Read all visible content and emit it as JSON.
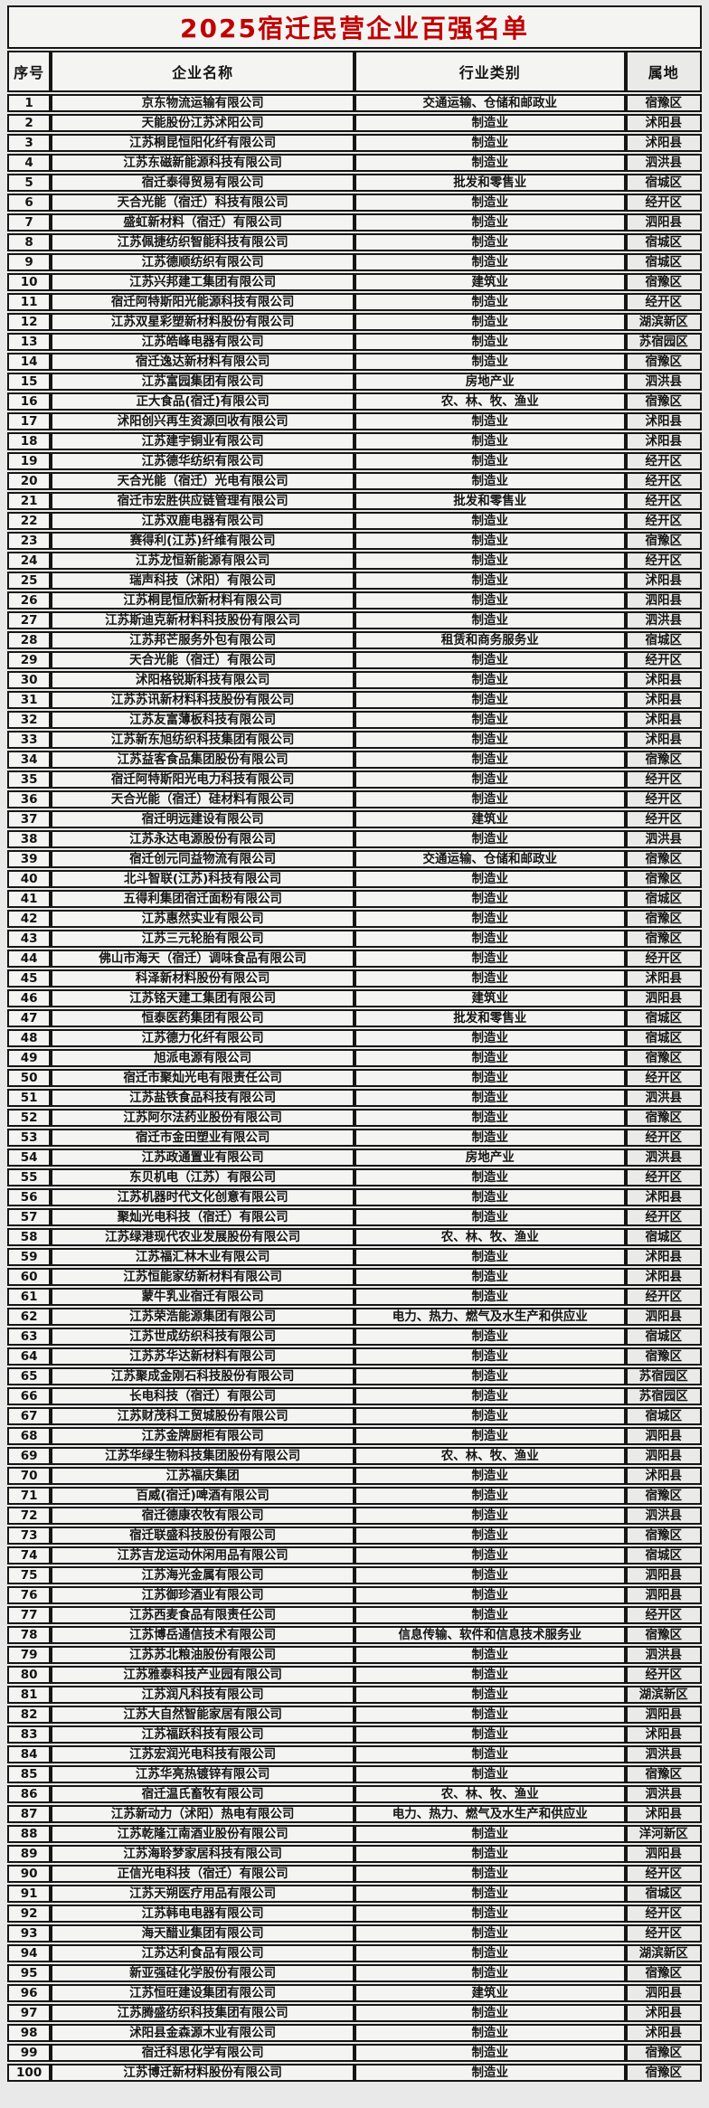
{
  "title": "2025宿迁民营企业百强名单",
  "colors": {
    "title_red": "#c00000",
    "border_black": "#161616",
    "cell_bg": "#f4f4f3"
  },
  "table": {
    "headers": [
      "序号",
      "企业名称",
      "行业类别",
      "属地"
    ],
    "rows": [
      [
        "1",
        "京东物流运输有限公司",
        "交通运输、仓储和邮政业",
        "宿豫区"
      ],
      [
        "2",
        "天能股份江苏沭阳公司",
        "制造业",
        "沭阳县"
      ],
      [
        "3",
        "江苏桐昆恒阳化纤有限公司",
        "制造业",
        "沭阳县"
      ],
      [
        "4",
        "江苏东磁新能源科技有限公司",
        "制造业",
        "泗洪县"
      ],
      [
        "5",
        "宿迁泰得贸易有限公司",
        "批发和零售业",
        "宿城区"
      ],
      [
        "6",
        "天合光能（宿迁）科技有限公司",
        "制造业",
        "经开区"
      ],
      [
        "7",
        "盛虹新材料（宿迁）有限公司",
        "制造业",
        "泗阳县"
      ],
      [
        "8",
        "江苏佩捷纺织智能科技有限公司",
        "制造业",
        "宿城区"
      ],
      [
        "9",
        "江苏德顺纺织有限公司",
        "制造业",
        "宿城区"
      ],
      [
        "10",
        "江苏兴邦建工集团有限公司",
        "建筑业",
        "宿豫区"
      ],
      [
        "11",
        "宿迁阿特斯阳光能源科技有限公司",
        "制造业",
        "经开区"
      ],
      [
        "12",
        "江苏双星彩塑新材料股份有限公司",
        "制造业",
        "湖滨新区"
      ],
      [
        "13",
        "江苏皓峰电器有限公司",
        "制造业",
        "苏宿园区"
      ],
      [
        "14",
        "宿迁逸达新材料有限公司",
        "制造业",
        "宿豫区"
      ],
      [
        "15",
        "江苏富园集团有限公司",
        "房地产业",
        "泗洪县"
      ],
      [
        "16",
        "正大食品(宿迁)有限公司",
        "农、林、牧、渔业",
        "宿豫区"
      ],
      [
        "17",
        "沭阳创兴再生资源回收有限公司",
        "制造业",
        "沭阳县"
      ],
      [
        "18",
        "江苏建宇铜业有限公司",
        "制造业",
        "沭阳县"
      ],
      [
        "19",
        "江苏德华纺织有限公司",
        "制造业",
        "经开区"
      ],
      [
        "20",
        "天合光能（宿迁）光电有限公司",
        "制造业",
        "经开区"
      ],
      [
        "21",
        "宿迁市宏胜供应链管理有限公司",
        "批发和零售业",
        "经开区"
      ],
      [
        "22",
        "江苏双鹿电器有限公司",
        "制造业",
        "经开区"
      ],
      [
        "23",
        "赛得利(江苏)纤维有限公司",
        "制造业",
        "宿豫区"
      ],
      [
        "24",
        "江苏龙恒新能源有限公司",
        "制造业",
        "经开区"
      ],
      [
        "25",
        "瑞声科技（沭阳）有限公司",
        "制造业",
        "沭阳县"
      ],
      [
        "26",
        "江苏桐昆恒欣新材料有限公司",
        "制造业",
        "泗阳县"
      ],
      [
        "27",
        "江苏斯迪克新材料科技股份有限公司",
        "制造业",
        "泗洪县"
      ],
      [
        "28",
        "江苏邦芒服务外包有限公司",
        "租赁和商务服务业",
        "宿城区"
      ],
      [
        "29",
        "天合光能（宿迁）有限公司",
        "制造业",
        "经开区"
      ],
      [
        "30",
        "沭阳格锐斯科技有限公司",
        "制造业",
        "沭阳县"
      ],
      [
        "31",
        "江苏苏讯新材料科技股份有限公司",
        "制造业",
        "沭阳县"
      ],
      [
        "32",
        "江苏友富薄板科技有限公司",
        "制造业",
        "沭阳县"
      ],
      [
        "33",
        "江苏新东旭纺织科技集团有限公司",
        "制造业",
        "沭阳县"
      ],
      [
        "34",
        "江苏益客食品集团股份有限公司",
        "制造业",
        "宿豫区"
      ],
      [
        "35",
        "宿迁阿特斯阳光电力科技有限公司",
        "制造业",
        "经开区"
      ],
      [
        "36",
        "天合光能（宿迁）硅材料有限公司",
        "制造业",
        "经开区"
      ],
      [
        "37",
        "宿迁明远建设有限公司",
        "建筑业",
        "经开区"
      ],
      [
        "38",
        "江苏永达电源股份有限公司",
        "制造业",
        "泗洪县"
      ],
      [
        "39",
        "宿迁创元同益物流有限公司",
        "交通运输、仓储和邮政业",
        "宿豫区"
      ],
      [
        "40",
        "北斗智联(江苏)科技有限公司",
        "制造业",
        "宿豫区"
      ],
      [
        "41",
        "五得利集团宿迁面粉有限公司",
        "制造业",
        "宿城区"
      ],
      [
        "42",
        "江苏惠然实业有限公司",
        "制造业",
        "宿豫区"
      ],
      [
        "43",
        "江苏三元轮胎有限公司",
        "制造业",
        "宿豫区"
      ],
      [
        "44",
        "佛山市海天（宿迁）调味食品有限公司",
        "制造业",
        "经开区"
      ],
      [
        "45",
        "科泽新材料股份有限公司",
        "制造业",
        "沭阳县"
      ],
      [
        "46",
        "江苏铭天建工集团有限公司",
        "建筑业",
        "泗阳县"
      ],
      [
        "47",
        "恒泰医药集团有限公司",
        "批发和零售业",
        "宿城区"
      ],
      [
        "48",
        "江苏德力化纤有限公司",
        "制造业",
        "宿城区"
      ],
      [
        "49",
        "旭派电源有限公司",
        "制造业",
        "宿豫区"
      ],
      [
        "50",
        "宿迁市聚灿光电有限责任公司",
        "制造业",
        "经开区"
      ],
      [
        "51",
        "江苏盐铁食品科技有限公司",
        "制造业",
        "泗洪县"
      ],
      [
        "52",
        "江苏阿尔法药业股份有限公司",
        "制造业",
        "宿豫区"
      ],
      [
        "53",
        "宿迁市金田塑业有限公司",
        "制造业",
        "经开区"
      ],
      [
        "54",
        "江苏政通置业有限公司",
        "房地产业",
        "泗洪县"
      ],
      [
        "55",
        "东贝机电（江苏）有限公司",
        "制造业",
        "经开区"
      ],
      [
        "56",
        "江苏机器时代文化创意有限公司",
        "制造业",
        "沭阳县"
      ],
      [
        "57",
        "聚灿光电科技（宿迁）有限公司",
        "制造业",
        "经开区"
      ],
      [
        "58",
        "江苏绿港现代农业发展股份有限公司",
        "农、林、牧、渔业",
        "宿城区"
      ],
      [
        "59",
        "江苏福汇林木业有限公司",
        "制造业",
        "沭阳县"
      ],
      [
        "60",
        "江苏恒能家纺新材料有限公司",
        "制造业",
        "沭阳县"
      ],
      [
        "61",
        "蒙牛乳业宿迁有限公司",
        "制造业",
        "经开区"
      ],
      [
        "62",
        "江苏荣浩能源集团有限公司",
        "电力、热力、燃气及水生产和供应业",
        "泗阳县"
      ],
      [
        "63",
        "江苏世成纺织科技有限公司",
        "制造业",
        "宿城区"
      ],
      [
        "64",
        "江苏苏华达新材料有限公司",
        "制造业",
        "宿豫区"
      ],
      [
        "65",
        "江苏聚成金刚石科技股份有限公司",
        "制造业",
        "苏宿园区"
      ],
      [
        "66",
        "长电科技（宿迁）有限公司",
        "制造业",
        "苏宿园区"
      ],
      [
        "67",
        "江苏财茂科工贸城股份有限公司",
        "制造业",
        "宿城区"
      ],
      [
        "68",
        "江苏金牌厨柜有限公司",
        "制造业",
        "泗阳县"
      ],
      [
        "69",
        "江苏华绿生物科技集团股份有限公司",
        "农、林、牧、渔业",
        "泗阳县"
      ],
      [
        "70",
        "江苏福庆集团",
        "制造业",
        "沭阳县"
      ],
      [
        "71",
        "百威(宿迁)啤酒有限公司",
        "制造业",
        "宿豫区"
      ],
      [
        "72",
        "宿迁德康农牧有限公司",
        "制造业",
        "泗洪县"
      ],
      [
        "73",
        "宿迁联盛科技股份有限公司",
        "制造业",
        "宿豫区"
      ],
      [
        "74",
        "江苏吉龙运动休闲用品有限公司",
        "制造业",
        "宿城区"
      ],
      [
        "75",
        "江苏海光金属有限公司",
        "制造业",
        "泗阳县"
      ],
      [
        "76",
        "江苏御珍酒业有限公司",
        "制造业",
        "泗阳县"
      ],
      [
        "77",
        "江苏西麦食品有限责任公司",
        "制造业",
        "经开区"
      ],
      [
        "78",
        "江苏博岳通信技术有限公司",
        "信息传输、软件和信息技术服务业",
        "宿豫区"
      ],
      [
        "79",
        "江苏苏北粮油股份有限公司",
        "制造业",
        "泗洪县"
      ],
      [
        "80",
        "江苏雅泰科技产业园有限公司",
        "制造业",
        "经开区"
      ],
      [
        "81",
        "江苏润凡科技有限公司",
        "制造业",
        "湖滨新区"
      ],
      [
        "82",
        "江苏大自然智能家居有限公司",
        "制造业",
        "泗阳县"
      ],
      [
        "83",
        "江苏福跃科技有限公司",
        "制造业",
        "沭阳县"
      ],
      [
        "84",
        "江苏宏润光电科技有限公司",
        "制造业",
        "泗洪县"
      ],
      [
        "85",
        "江苏华亮热镀锌有限公司",
        "制造业",
        "宿豫区"
      ],
      [
        "86",
        "宿迁温氏畜牧有限公司",
        "农、林、牧、渔业",
        "泗洪县"
      ],
      [
        "87",
        "江苏新动力（沭阳）热电有限公司",
        "电力、热力、燃气及水生产和供应业",
        "沭阳县"
      ],
      [
        "88",
        "江苏乾隆江南酒业股份有限公司",
        "制造业",
        "洋河新区"
      ],
      [
        "89",
        "江苏海聆梦家居科技有限公司",
        "制造业",
        "泗阳县"
      ],
      [
        "90",
        "正信光电科技（宿迁）有限公司",
        "制造业",
        "经开区"
      ],
      [
        "91",
        "江苏天朔医疗用品有限公司",
        "制造业",
        "宿城区"
      ],
      [
        "92",
        "江苏韩电电器有限公司",
        "制造业",
        "经开区"
      ],
      [
        "93",
        "海天醋业集团有限公司",
        "制造业",
        "经开区"
      ],
      [
        "94",
        "江苏达利食品有限公司",
        "制造业",
        "湖滨新区"
      ],
      [
        "95",
        "新亚强硅化学股份有限公司",
        "制造业",
        "宿豫区"
      ],
      [
        "96",
        "江苏恒旺建设集团有限公司",
        "建筑业",
        "泗阳县"
      ],
      [
        "97",
        "江苏腾盛纺织科技集团有限公司",
        "制造业",
        "沭阳县"
      ],
      [
        "98",
        "沭阳县金森源木业有限公司",
        "制造业",
        "沭阳县"
      ],
      [
        "99",
        "宿迁科思化学有限公司",
        "制造业",
        "宿豫区"
      ],
      [
        "100",
        "江苏博迁新材料股份有限公司",
        "制造业",
        "宿豫区"
      ]
    ]
  }
}
